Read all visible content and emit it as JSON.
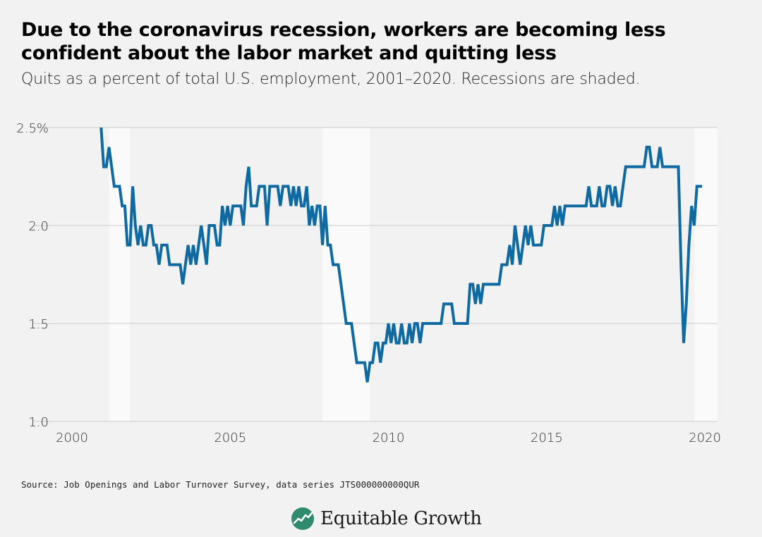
{
  "header": {
    "title": "Due to the coronavirus recession, workers are becoming less confident about the labor market and quitting less",
    "subtitle": "Quits as a percent of total U.S. employment, 2001–2020. Recessions are shaded."
  },
  "footer": {
    "source": "Source: Job Openings and Labor Turnover Survey, data series JTS000000000QUR",
    "brand": "Equitable Growth"
  },
  "colors": {
    "line": "#0f6aa2",
    "recession": "#fafafa",
    "background": "#f2f2f2",
    "grid": "#cccccc",
    "logo": "#2e8b6e"
  },
  "chart_data": {
    "type": "line",
    "title": "",
    "xlabel": "",
    "ylabel": "",
    "xlim": [
      2000,
      2020.4
    ],
    "ylim": [
      1.0,
      2.5
    ],
    "grid": "horizontal",
    "x_ticks": [
      2000,
      2005,
      2010,
      2015,
      2020
    ],
    "x_tick_labels": [
      "2000",
      "2005",
      "2010",
      "2015",
      "2020"
    ],
    "y_ticks": [
      1.0,
      1.5,
      2.0,
      2.5
    ],
    "y_tick_labels": [
      "1.0",
      "1.5",
      "2.0",
      "2.5%"
    ],
    "recessions": [
      {
        "start": 2001.17,
        "end": 2001.83
      },
      {
        "start": 2007.92,
        "end": 2009.42
      },
      {
        "start": 2019.67,
        "end": 2020.4
      }
    ],
    "series": [
      {
        "start": 2000.92,
        "step": 0.0833,
        "values": [
          2.5,
          2.3,
          2.3,
          2.4,
          2.3,
          2.2,
          2.2,
          2.2,
          2.1,
          2.1,
          1.9,
          1.9,
          2.2,
          2.0,
          1.9,
          2.0,
          1.9,
          1.9,
          2.0,
          2.0,
          1.9,
          1.9,
          1.8,
          1.9,
          1.9,
          1.9,
          1.8,
          1.8,
          1.8,
          1.8,
          1.8,
          1.7,
          1.8,
          1.9,
          1.8,
          1.9,
          1.8,
          1.9,
          2.0,
          1.9,
          1.8,
          2.0,
          2.0,
          2.0,
          1.9,
          1.9,
          2.1,
          2.0,
          2.1,
          2.0,
          2.1,
          2.1,
          2.1,
          2.1,
          2.0,
          2.2,
          2.3,
          2.1,
          2.1,
          2.1,
          2.2,
          2.2,
          2.2,
          2.0,
          2.2,
          2.2,
          2.2,
          2.2,
          2.1,
          2.2,
          2.2,
          2.2,
          2.1,
          2.2,
          2.1,
          2.2,
          2.1,
          2.1,
          2.2,
          2.0,
          2.1,
          2.0,
          2.1,
          2.1,
          1.9,
          2.1,
          1.9,
          1.9,
          1.8,
          1.8,
          1.8,
          1.7,
          1.6,
          1.5,
          1.5,
          1.5,
          1.4,
          1.3,
          1.3,
          1.3,
          1.3,
          1.2,
          1.3,
          1.3,
          1.4,
          1.4,
          1.3,
          1.4,
          1.4,
          1.5,
          1.4,
          1.5,
          1.4,
          1.4,
          1.5,
          1.4,
          1.4,
          1.5,
          1.4,
          1.5,
          1.5,
          1.4,
          1.5,
          1.5,
          1.5,
          1.5,
          1.5,
          1.5,
          1.5,
          1.5,
          1.6,
          1.6,
          1.6,
          1.6,
          1.5,
          1.5,
          1.5,
          1.5,
          1.5,
          1.5,
          1.7,
          1.7,
          1.6,
          1.7,
          1.6,
          1.7,
          1.7,
          1.7,
          1.7,
          1.7,
          1.7,
          1.7,
          1.8,
          1.8,
          1.8,
          1.9,
          1.8,
          2.0,
          1.9,
          1.8,
          1.9,
          2.0,
          1.9,
          2.0,
          1.9,
          1.9,
          1.9,
          1.9,
          2.0,
          2.0,
          2.0,
          2.0,
          2.1,
          2.0,
          2.1,
          2.0,
          2.1,
          2.1,
          2.1,
          2.1,
          2.1,
          2.1,
          2.1,
          2.1,
          2.1,
          2.2,
          2.1,
          2.1,
          2.1,
          2.2,
          2.1,
          2.1,
          2.2,
          2.2,
          2.1,
          2.2,
          2.1,
          2.1,
          2.2,
          2.3,
          2.3,
          2.3,
          2.3,
          2.3,
          2.3,
          2.3,
          2.3,
          2.4,
          2.4,
          2.3,
          2.3,
          2.3,
          2.4,
          2.3,
          2.3,
          2.3,
          2.3,
          2.3,
          2.3,
          2.3,
          1.8,
          1.4,
          1.6,
          1.9,
          2.1,
          2.0,
          2.2,
          2.2,
          2.2
        ]
      }
    ]
  }
}
